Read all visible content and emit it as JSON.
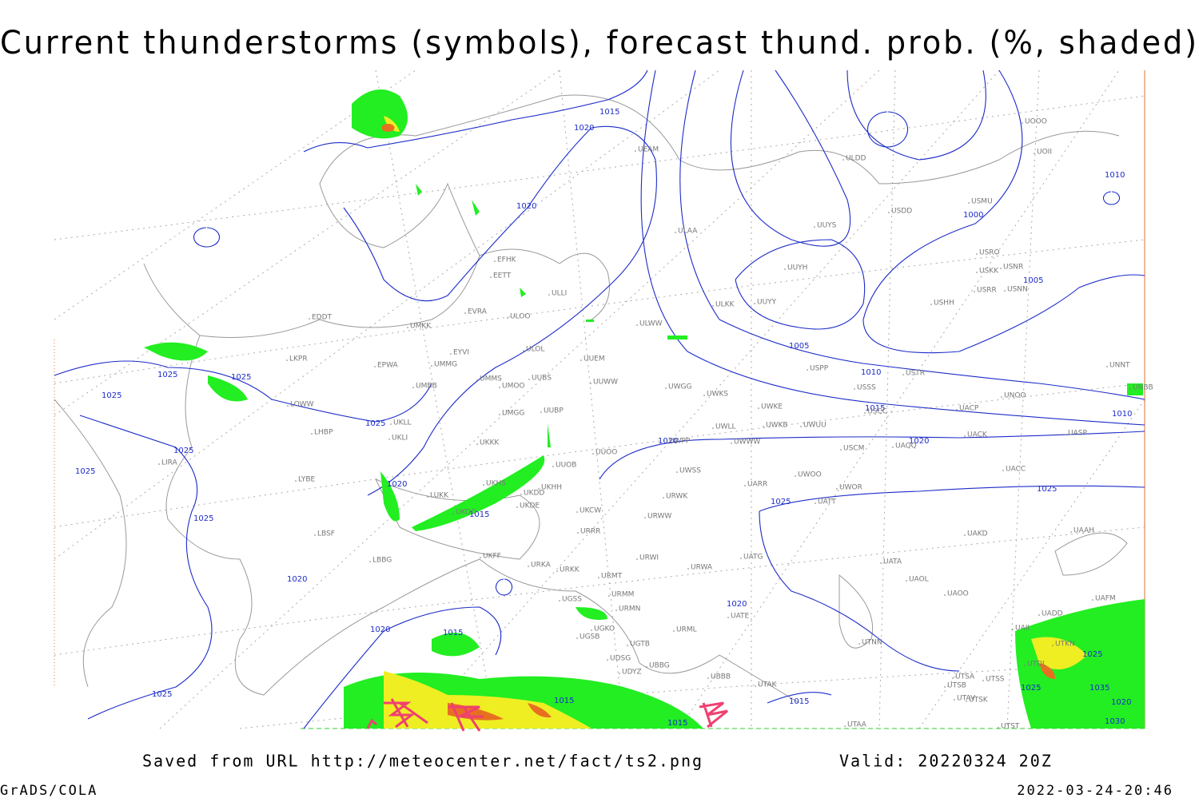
{
  "title": "Current thunderstorms (symbols), forecast thund. prob. (%, shaded)",
  "footer": {
    "saved": "Saved from URL http://meteocenter.net/fact/ts2.png",
    "valid": "Valid: 20220324 20Z",
    "credit": "GrADS/COLA",
    "timestamp": "2022-03-24-20:46"
  },
  "isobar_labels": [
    "1015",
    "1020",
    "1020",
    "1010",
    "1000",
    "1005",
    "1005",
    "1010",
    "1015",
    "1010",
    "1020",
    "1020",
    "1025",
    "1025",
    "1020",
    "1015",
    "1015",
    "1015",
    "1020",
    "1015",
    "1025",
    "1025",
    "1025",
    "1025",
    "1025",
    "1025",
    "1025",
    "1020",
    "1020",
    "1015",
    "1025",
    "1025",
    "1035",
    "1020",
    "1030",
    "1025"
  ],
  "stations": [
    "UOOO",
    "UOII",
    "ULDD",
    "UEAM",
    "USMU",
    "USDD",
    "UUYS",
    "ULAA",
    "USRO",
    "USNR",
    "USKK",
    "USRR",
    "USNN",
    "EFHK",
    "EETT",
    "UUYH",
    "ULLI",
    "ULKK",
    "UUYY",
    "USHH",
    "EVRA",
    "ULOO",
    "EDDT",
    "ULWW",
    "UMKK",
    "ULOL",
    "EYVI",
    "UUEM",
    "LKPR",
    "EPWA",
    "UMMG",
    "USPP",
    "USTR",
    "UNNT",
    "UUWW",
    "UMMS",
    "UUBS",
    "UMOO",
    "USSS",
    "UMBB",
    "UWGG",
    "UWKS",
    "UNOO",
    "UNBB",
    "LOWW",
    "UWKE",
    "UUBP",
    "UMGG",
    "USCC",
    "UACP",
    "UKLL",
    "UWKB",
    "UWUU",
    "UWLL",
    "LHBP",
    "UKLI",
    "UACK",
    "UASP",
    "UWPP",
    "UWWW",
    "UKKK",
    "USCM",
    "UAQQ",
    "UUOO",
    "LIRA",
    "UUOB",
    "UWSS",
    "UACC",
    "LYBE",
    "UWOO",
    "UKHH",
    "UARR",
    "UWOR",
    "UKHS",
    "UKDD",
    "LUKK",
    "UATT",
    "UKOO",
    "UKDE",
    "UKCW",
    "URWK",
    "URWW",
    "UAKD",
    "UAAH",
    "UKFF",
    "URRR",
    "LBSF",
    "LBBG",
    "URKA",
    "URKK",
    "URWI",
    "UATG",
    "UATA",
    "URMT",
    "URWA",
    "UAOL",
    "UAOO",
    "UAFM",
    "UGSS",
    "URMM",
    "URMN",
    "UATE",
    "UADD",
    "UGKO",
    "URML",
    "UAII",
    "UGSB",
    "UGTB",
    "UTKN",
    "UTNN",
    "UDSG",
    "UBBG",
    "UTDL",
    "UBBB",
    "UDYZ",
    "UTAK",
    "UTSA",
    "UTSS",
    "UTSB",
    "UTAV",
    "UTSK",
    "UTAA",
    "UTST"
  ]
}
